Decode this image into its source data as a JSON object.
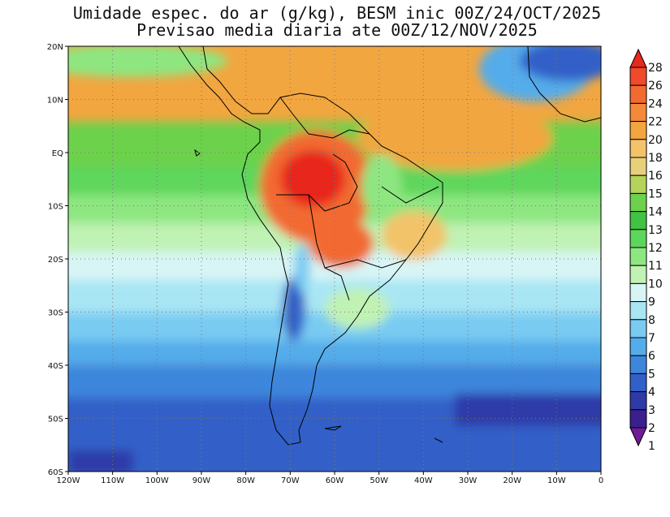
{
  "title": {
    "line1": "Umidade espec. do ar (g/kg), BESM inic 00Z/24/OCT/2025",
    "line2": "Previsao media diaria ate 00Z/12/NOV/2025"
  },
  "axes": {
    "lon_labels": [
      "120W",
      "110W",
      "100W",
      "90W",
      "80W",
      "70W",
      "60W",
      "50W",
      "40W",
      "30W",
      "20W",
      "10W",
      "0"
    ],
    "lat_labels": [
      "20N",
      "10N",
      "EQ",
      "10S",
      "20S",
      "30S",
      "40S",
      "50S",
      "60S"
    ],
    "lon_range": [
      -120,
      0
    ],
    "lat_range": [
      -60,
      20
    ],
    "gridlines": true
  },
  "colorbar": {
    "levels": [
      "28",
      "26",
      "24",
      "22",
      "20",
      "18",
      "16",
      "15",
      "14",
      "13",
      "12",
      "11",
      "10",
      "9",
      "8",
      "7",
      "6",
      "5",
      "4",
      "3",
      "2",
      "1"
    ],
    "colors": [
      "#e8281e",
      "#f04a2a",
      "#f26a30",
      "#f5893a",
      "#f2a640",
      "#f3c36a",
      "#e8d07a",
      "#b5d35a",
      "#6cd24c",
      "#41c242",
      "#5ed65b",
      "#8ee681",
      "#c0f2b4",
      "#d8f5f5",
      "#a9e6f4",
      "#79cbf2",
      "#55acea",
      "#3d86dc",
      "#3160c8",
      "#2e3aa8",
      "#3a1f8e",
      "#6f1b96"
    ]
  },
  "field": {
    "name": "Umidade espec. do ar",
    "units": "g/kg"
  }
}
